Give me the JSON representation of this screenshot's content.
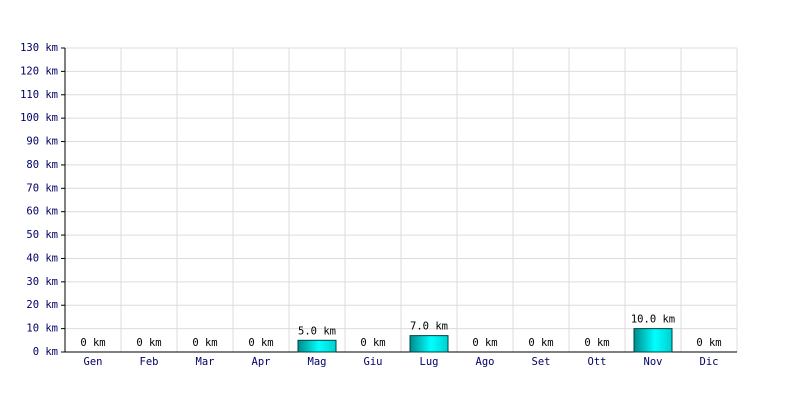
{
  "chart_data": {
    "type": "bar",
    "categories": [
      "Gen",
      "Feb",
      "Mar",
      "Apr",
      "Mag",
      "Giu",
      "Lug",
      "Ago",
      "Set",
      "Ott",
      "Nov",
      "Dic"
    ],
    "values": [
      0,
      0,
      0,
      0,
      5,
      0,
      7,
      0,
      0,
      0,
      10,
      0
    ],
    "value_labels": [
      "0 km",
      "0 km",
      "0 km",
      "0 km",
      "5.0 km",
      "0 km",
      "7.0 km",
      "0 km",
      "0 km",
      "0 km",
      "10.0 km",
      "0 km"
    ],
    "color": "#00cccc",
    "ylim": [
      0,
      130
    ],
    "yticks": [
      {
        "value": 0,
        "label": "0 km"
      },
      {
        "value": 10,
        "label": "10 km"
      },
      {
        "value": 20,
        "label": "20 km"
      },
      {
        "value": 30,
        "label": "30 km"
      },
      {
        "value": 40,
        "label": "40 km"
      },
      {
        "value": 50,
        "label": "50 km"
      },
      {
        "value": 60,
        "label": "60 km"
      },
      {
        "value": 70,
        "label": "70 km"
      },
      {
        "value": 80,
        "label": "80 km"
      },
      {
        "value": 90,
        "label": "90 km"
      },
      {
        "value": 100,
        "label": "100 km"
      },
      {
        "value": 110,
        "label": "110 km"
      },
      {
        "value": 120,
        "label": "120 km"
      },
      {
        "value": 130,
        "label": "130 km"
      }
    ],
    "grid": true
  }
}
